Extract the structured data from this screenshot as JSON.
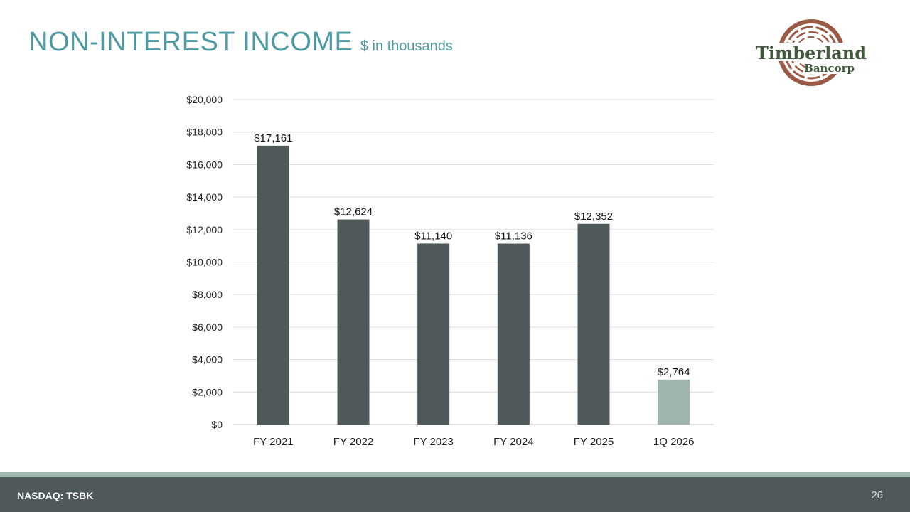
{
  "header": {
    "title": "NON-INTEREST INCOME",
    "subtitle": "$ in thousands"
  },
  "logo": {
    "line1": "Timberland",
    "line2": "Bancorp"
  },
  "footer": {
    "ticker": "NASDAQ: TSBK",
    "page_number": "26"
  },
  "colors": {
    "primary_bar": "#4f585a",
    "highlight_bar": "#9fb5b0",
    "title": "#4e9aa0",
    "logo_ring": "#9a5a46",
    "logo_text": "#3f5a3a"
  },
  "chart_data": {
    "type": "bar",
    "categories": [
      "FY 2021",
      "FY 2022",
      "FY 2023",
      "FY 2024",
      "FY 2025",
      "1Q 2026"
    ],
    "values": [
      17161,
      12624,
      11140,
      11136,
      12352,
      2764
    ],
    "data_labels": [
      "$17,161",
      "$12,624",
      "$11,140",
      "$11,136",
      "$12,352",
      "$2,764"
    ],
    "highlight_index": 5,
    "ylim": [
      0,
      20000
    ],
    "yticks": [
      0,
      2000,
      4000,
      6000,
      8000,
      10000,
      12000,
      14000,
      16000,
      18000,
      20000
    ],
    "ytick_labels": [
      "$0",
      "$2,000",
      "$4,000",
      "$6,000",
      "$8,000",
      "$10,000",
      "$12,000",
      "$14,000",
      "$16,000",
      "$18,000",
      "$20,000"
    ],
    "grid": true,
    "legend": false
  }
}
